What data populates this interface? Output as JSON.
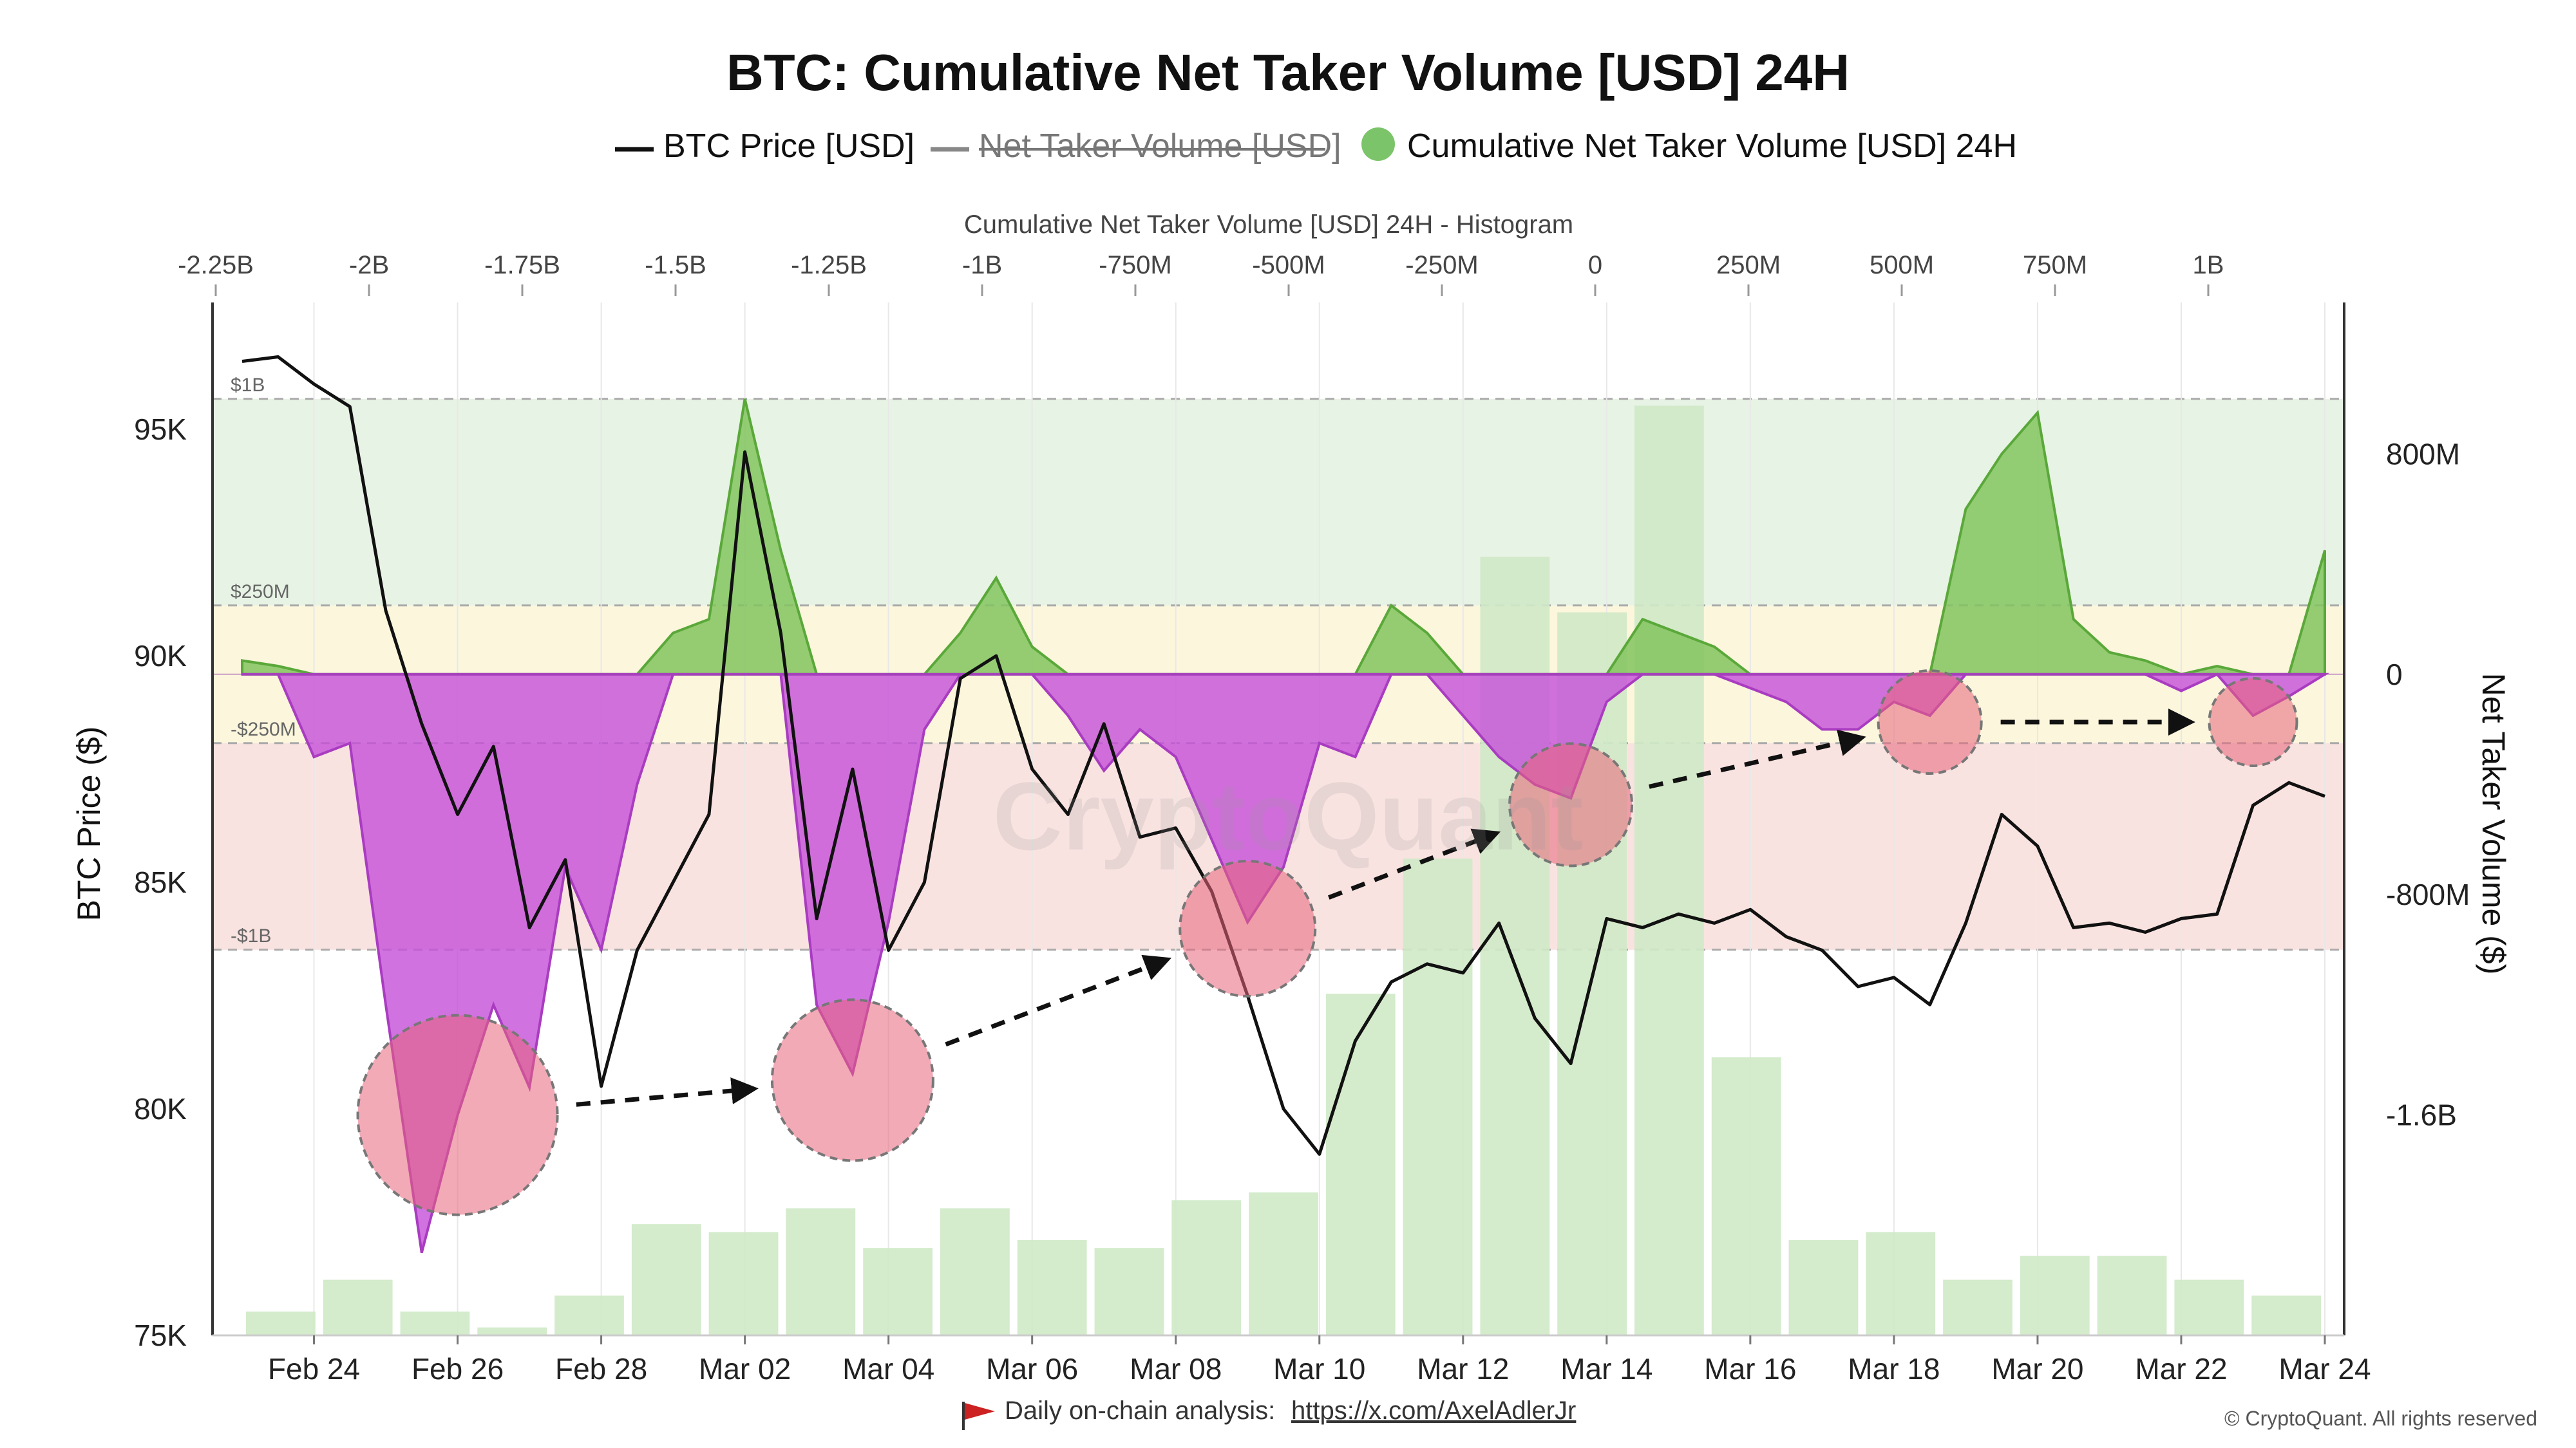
{
  "title": "BTC: Cumulative Net Taker Volume [USD] 24H",
  "legend": [
    {
      "label": "BTC Price [USD]",
      "color": "#111111",
      "style": "line",
      "struck": false
    },
    {
      "label": "Net Taker Volume [USD]",
      "color": "#888888",
      "style": "line",
      "struck": true
    },
    {
      "label": "Cumulative Net Taker Volume [USD] 24H",
      "color": "#7cc46a",
      "style": "dot",
      "struck": false
    }
  ],
  "watermark": "CryptoQuant",
  "footer": {
    "text": "Daily on-chain analysis:",
    "link": "https://x.com/AxelAdlerJr",
    "copyright": "© CryptoQuant. All rights reserved"
  },
  "colors": {
    "positive_fill": "#82c45f",
    "negative_fill": "#c64fd9",
    "price_line": "#111111",
    "histogram": "#cfe9c7",
    "band_green": "#e7f3e4",
    "band_yellow": "#fbf6dc",
    "band_red": "#f9e3e0",
    "circles": "#e8647a"
  },
  "chart_data": {
    "type": "line",
    "x_ticks": [
      "Feb 24",
      "Feb 26",
      "Feb 28",
      "Mar 02",
      "Mar 04",
      "Mar 06",
      "Mar 08",
      "Mar 10",
      "Mar 12",
      "Mar 14",
      "Mar 16",
      "Mar 18",
      "Mar 20",
      "Mar 22",
      "Mar 24"
    ],
    "left_axis": {
      "label": "BTC Price ($)",
      "ticks": [
        "95K",
        "90K",
        "85K",
        "80K",
        "75K"
      ],
      "range": [
        75000,
        97800
      ]
    },
    "right_axis": {
      "label": "Net Taker Volume ($)",
      "ticks": [
        "800M",
        "0",
        "-800M",
        "-1.6B"
      ],
      "range": [
        -2400000000,
        1350000000
      ]
    },
    "top_axis": {
      "label": "Cumulative Net Taker Volume [USD] 24H - Histogram",
      "ticks": [
        "-2.25B",
        "-2B",
        "-1.75B",
        "-1.5B",
        "-1.25B",
        "-1B",
        "-750M",
        "-500M",
        "-250M",
        "0",
        "250M",
        "500M",
        "750M",
        "1B"
      ]
    },
    "bands": [
      {
        "label": "$1B",
        "value": 1000000000
      },
      {
        "label": "$250M",
        "value": 250000000
      },
      {
        "label": "-$250M",
        "value": -250000000
      },
      {
        "label": "-$1B",
        "value": -1000000000
      }
    ],
    "series": [
      {
        "name": "BTC Price [USD]",
        "x": [
          "Feb 22",
          "Feb 23",
          "Feb 24",
          "Feb 24 12:00",
          "Feb 25",
          "Feb 25 12:00",
          "Feb 26",
          "Feb 26 12:00",
          "Feb 27",
          "Feb 27 12:00",
          "Feb 28",
          "Feb 28 12:00",
          "Mar 01",
          "Mar 01 12:00",
          "Mar 02",
          "Mar 02 12:00",
          "Mar 03",
          "Mar 03 12:00",
          "Mar 04",
          "Mar 04 12:00",
          "Mar 05",
          "Mar 05 12:00",
          "Mar 06",
          "Mar 06 12:00",
          "Mar 07",
          "Mar 07 12:00",
          "Mar 08",
          "Mar 08 12:00",
          "Mar 09",
          "Mar 09 12:00",
          "Mar 10",
          "Mar 10 12:00",
          "Mar 11",
          "Mar 11 12:00",
          "Mar 12",
          "Mar 12 12:00",
          "Mar 13",
          "Mar 13 12:00",
          "Mar 14",
          "Mar 14 12:00",
          "Mar 15",
          "Mar 15 12:00",
          "Mar 16",
          "Mar 16 12:00",
          "Mar 17",
          "Mar 17 12:00",
          "Mar 18",
          "Mar 18 12:00",
          "Mar 19",
          "Mar 19 12:00",
          "Mar 20",
          "Mar 20 12:00",
          "Mar 21",
          "Mar 21 12:00",
          "Mar 22",
          "Mar 22 12:00",
          "Mar 23",
          "Mar 23 12:00",
          "Mar 24"
        ],
        "values": [
          96500,
          96600,
          96000,
          95500,
          91000,
          88500,
          86500,
          88000,
          84000,
          85500,
          80500,
          83500,
          85000,
          86500,
          94500,
          90500,
          84200,
          87500,
          83500,
          85000,
          89500,
          90000,
          87500,
          86500,
          88500,
          86000,
          86200,
          84800,
          82500,
          80000,
          79000,
          81500,
          82800,
          83200,
          83000,
          84100,
          82000,
          81000,
          84200,
          84000,
          84300,
          84100,
          84400,
          83800,
          83500,
          82700,
          82900,
          82300,
          84100,
          86500,
          85800,
          84000,
          84100,
          83900,
          84200,
          84300,
          86700,
          87200,
          86900
        ]
      },
      {
        "name": "Cumulative Net Taker Volume [USD] 24H",
        "x": [
          "Feb 22",
          "Feb 23",
          "Feb 24",
          "Feb 24 12:00",
          "Feb 25",
          "Feb 25 12:00",
          "Feb 26",
          "Feb 26 12:00",
          "Feb 27",
          "Feb 27 12:00",
          "Feb 28",
          "Feb 28 12:00",
          "Mar 01",
          "Mar 01 12:00",
          "Mar 02",
          "Mar 02 12:00",
          "Mar 03",
          "Mar 03 12:00",
          "Mar 04",
          "Mar 04 12:00",
          "Mar 05",
          "Mar 05 12:00",
          "Mar 06",
          "Mar 06 12:00",
          "Mar 07",
          "Mar 07 12:00",
          "Mar 08",
          "Mar 08 12:00",
          "Mar 09",
          "Mar 09 12:00",
          "Mar 10",
          "Mar 10 12:00",
          "Mar 11",
          "Mar 11 12:00",
          "Mar 12",
          "Mar 12 12:00",
          "Mar 13",
          "Mar 13 12:00",
          "Mar 14",
          "Mar 14 12:00",
          "Mar 15",
          "Mar 15 12:00",
          "Mar 16",
          "Mar 16 12:00",
          "Mar 17",
          "Mar 17 12:00",
          "Mar 18",
          "Mar 18 12:00",
          "Mar 19",
          "Mar 19 12:00",
          "Mar 20",
          "Mar 20 12:00",
          "Mar 21",
          "Mar 21 12:00",
          "Mar 22",
          "Mar 22 12:00",
          "Mar 23",
          "Mar 23 12:00",
          "Mar 24"
        ],
        "values": [
          50000000,
          30000000,
          -300000000,
          -250000000,
          -1200000000,
          -2100000000,
          -1600000000,
          -1200000000,
          -1500000000,
          -700000000,
          -1000000000,
          -400000000,
          150000000,
          200000000,
          1000000000,
          450000000,
          -1200000000,
          -1450000000,
          -900000000,
          -200000000,
          150000000,
          350000000,
          100000000,
          -150000000,
          -350000000,
          -200000000,
          -300000000,
          -600000000,
          -900000000,
          -700000000,
          -250000000,
          -300000000,
          250000000,
          150000000,
          -150000000,
          -300000000,
          -400000000,
          -450000000,
          -100000000,
          200000000,
          150000000,
          100000000,
          -50000000,
          -100000000,
          -200000000,
          -200000000,
          -100000000,
          -150000000,
          600000000,
          800000000,
          950000000,
          200000000,
          80000000,
          50000000,
          -60000000,
          30000000,
          -150000000,
          -80000000,
          450000000
        ]
      }
    ],
    "histogram": {
      "bins": [
        "-2.25B",
        "-2.125B",
        "-2B",
        "-1.875B",
        "-1.75B",
        "-1.625B",
        "-1.5B",
        "-1.375B",
        "-1.25B",
        "-1.125B",
        "-1B",
        "-875M",
        "-750M",
        "-625M",
        "-500M",
        "-375M",
        "-250M",
        "-125M",
        "0",
        "125M",
        "250M",
        "375M",
        "500M",
        "625M",
        "750M",
        "875M",
        "1B",
        "1.125B"
      ],
      "counts": [
        3,
        7,
        3,
        1,
        5,
        14,
        13,
        16,
        11,
        16,
        12,
        11,
        17,
        18,
        43,
        60,
        98,
        91,
        117,
        35,
        12,
        13,
        7,
        10,
        10,
        7,
        5
      ]
    }
  }
}
